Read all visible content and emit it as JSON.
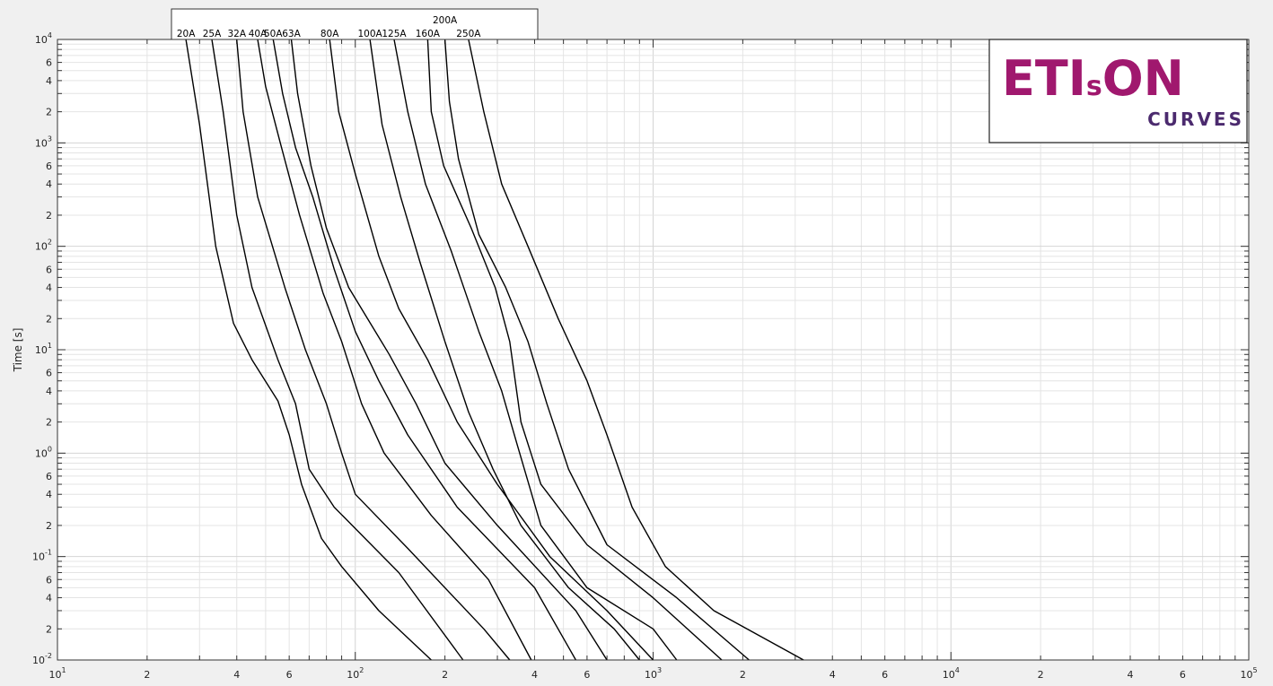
{
  "chart_data": {
    "type": "line",
    "title": "",
    "xlabel": "",
    "ylabel": "Time [s]",
    "xscale": "log",
    "yscale": "log",
    "xlim": [
      10,
      100000
    ],
    "ylim": [
      0.01,
      10000
    ],
    "grid": true,
    "legend": "labels above curves, top-left box",
    "line_color": "#000000",
    "x_ticks": [
      {
        "base": "10",
        "exp": "1"
      },
      {
        "base": "2"
      },
      {
        "base": "4"
      },
      {
        "base": "6"
      },
      {
        "base": "10",
        "exp": "2"
      },
      {
        "base": "2"
      },
      {
        "base": "4"
      },
      {
        "base": "6"
      },
      {
        "base": "10",
        "exp": "3"
      },
      {
        "base": "2"
      },
      {
        "base": "4"
      },
      {
        "base": "6"
      },
      {
        "base": "10",
        "exp": "4"
      },
      {
        "base": "2"
      },
      {
        "base": "4"
      },
      {
        "base": "6"
      },
      {
        "base": "10",
        "exp": "5"
      }
    ],
    "y_ticks": [
      {
        "base": "10",
        "exp": "-2"
      },
      {
        "base": "2"
      },
      {
        "base": "4"
      },
      {
        "base": "6"
      },
      {
        "base": "10",
        "exp": "-1"
      },
      {
        "base": "2"
      },
      {
        "base": "4"
      },
      {
        "base": "6"
      },
      {
        "base": "10",
        "exp": "0"
      },
      {
        "base": "2"
      },
      {
        "base": "4"
      },
      {
        "base": "6"
      },
      {
        "base": "10",
        "exp": "1"
      },
      {
        "base": "2"
      },
      {
        "base": "4"
      },
      {
        "base": "6"
      },
      {
        "base": "10",
        "exp": "2"
      },
      {
        "base": "2"
      },
      {
        "base": "4"
      },
      {
        "base": "6"
      },
      {
        "base": "10",
        "exp": "3"
      },
      {
        "base": "2"
      },
      {
        "base": "4"
      },
      {
        "base": "6"
      },
      {
        "base": "10",
        "exp": "4"
      }
    ],
    "series": [
      {
        "name": "20A",
        "points": [
          [
            27,
            10000
          ],
          [
            30,
            1500
          ],
          [
            34,
            100
          ],
          [
            39,
            18
          ],
          [
            45,
            8
          ],
          [
            55,
            3.2
          ],
          [
            60,
            1.5
          ],
          [
            66,
            0.5
          ],
          [
            77,
            0.15
          ],
          [
            90,
            0.08
          ],
          [
            120,
            0.03
          ],
          [
            180,
            0.01
          ]
        ]
      },
      {
        "name": "25A",
        "points": [
          [
            33,
            10000
          ],
          [
            36,
            2000
          ],
          [
            40,
            200
          ],
          [
            45,
            40
          ],
          [
            55,
            8
          ],
          [
            63,
            3
          ],
          [
            70,
            0.7
          ],
          [
            85,
            0.3
          ],
          [
            140,
            0.07
          ],
          [
            230,
            0.01
          ]
        ]
      },
      {
        "name": "32A",
        "points": [
          [
            40,
            10000
          ],
          [
            42,
            2000
          ],
          [
            47,
            300
          ],
          [
            58,
            40
          ],
          [
            68,
            10
          ],
          [
            80,
            3
          ],
          [
            90,
            1
          ],
          [
            100,
            0.4
          ],
          [
            150,
            0.12
          ],
          [
            270,
            0.02
          ],
          [
            330,
            0.01
          ]
        ]
      },
      {
        "name": "40A",
        "points": [
          [
            47,
            10000
          ],
          [
            50,
            3500
          ],
          [
            56,
            1000
          ],
          [
            65,
            200
          ],
          [
            78,
            35
          ],
          [
            90,
            12
          ],
          [
            105,
            3
          ],
          [
            125,
            1
          ],
          [
            180,
            0.25
          ],
          [
            280,
            0.06
          ],
          [
            390,
            0.01
          ]
        ]
      },
      {
        "name": "50A",
        "points": [
          [
            53,
            10000
          ],
          [
            57,
            3000
          ],
          [
            63,
            900
          ],
          [
            72,
            300
          ],
          [
            85,
            60
          ],
          [
            100,
            15
          ],
          [
            120,
            5
          ],
          [
            150,
            1.5
          ],
          [
            220,
            0.3
          ],
          [
            400,
            0.05
          ],
          [
            550,
            0.01
          ]
        ]
      },
      {
        "name": "63A",
        "points": [
          [
            61,
            10000
          ],
          [
            64,
            3000
          ],
          [
            71,
            600
          ],
          [
            80,
            150
          ],
          [
            95,
            40
          ],
          [
            130,
            9
          ],
          [
            160,
            3
          ],
          [
            200,
            0.8
          ],
          [
            300,
            0.2
          ],
          [
            550,
            0.03
          ],
          [
            700,
            0.01
          ]
        ]
      },
      {
        "name": "80A",
        "points": [
          [
            82,
            10000
          ],
          [
            88,
            2000
          ],
          [
            100,
            500
          ],
          [
            120,
            80
          ],
          [
            140,
            25
          ],
          [
            175,
            8
          ],
          [
            220,
            2
          ],
          [
            300,
            0.5
          ],
          [
            450,
            0.1
          ],
          [
            700,
            0.03
          ],
          [
            1000,
            0.01
          ]
        ]
      },
      {
        "name": "100A",
        "points": [
          [
            112,
            10000
          ],
          [
            123,
            1500
          ],
          [
            142,
            300
          ],
          [
            165,
            70
          ],
          [
            200,
            12
          ],
          [
            240,
            2.5
          ],
          [
            290,
            0.7
          ],
          [
            360,
            0.2
          ],
          [
            520,
            0.05
          ],
          [
            740,
            0.02
          ],
          [
            900,
            0.01
          ]
        ]
      },
      {
        "name": "125A",
        "points": [
          [
            135,
            10000
          ],
          [
            150,
            2000
          ],
          [
            172,
            400
          ],
          [
            210,
            90
          ],
          [
            260,
            15
          ],
          [
            310,
            4
          ],
          [
            350,
            1.2
          ],
          [
            420,
            0.2
          ],
          [
            600,
            0.05
          ],
          [
            1000,
            0.02
          ],
          [
            1200,
            0.01
          ]
        ]
      },
      {
        "name": "160A",
        "points": [
          [
            175,
            10000
          ],
          [
            180,
            2000
          ],
          [
            198,
            600
          ],
          [
            245,
            150
          ],
          [
            295,
            40
          ],
          [
            330,
            12
          ],
          [
            360,
            2
          ],
          [
            420,
            0.5
          ],
          [
            600,
            0.13
          ],
          [
            1000,
            0.04
          ],
          [
            1700,
            0.01
          ]
        ]
      },
      {
        "name": "200A",
        "points": [
          [
            200,
            10000
          ],
          [
            207,
            2500
          ],
          [
            222,
            700
          ],
          [
            260,
            130
          ],
          [
            320,
            40
          ],
          [
            380,
            12
          ],
          [
            440,
            3
          ],
          [
            520,
            0.7
          ],
          [
            700,
            0.13
          ],
          [
            1200,
            0.04
          ],
          [
            2100,
            0.01
          ]
        ]
      },
      {
        "name": "250A",
        "points": [
          [
            240,
            10000
          ],
          [
            270,
            2000
          ],
          [
            310,
            400
          ],
          [
            380,
            100
          ],
          [
            480,
            20
          ],
          [
            600,
            5
          ],
          [
            700,
            1.5
          ],
          [
            850,
            0.3
          ],
          [
            1100,
            0.08
          ],
          [
            1600,
            0.03
          ],
          [
            3200,
            0.01
          ]
        ]
      }
    ]
  },
  "logo": {
    "main": "ETI",
    "sub_s": "s",
    "main2": "ON",
    "tagline": "CURVES"
  }
}
